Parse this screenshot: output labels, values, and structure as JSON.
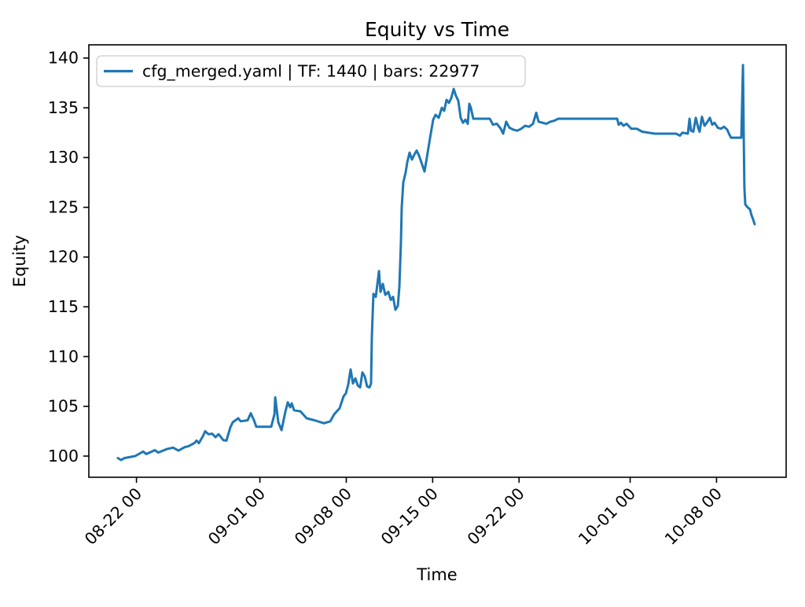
{
  "chart_data": {
    "type": "line",
    "title": "Equity vs Time",
    "xlabel": "Time",
    "ylabel": "Equity",
    "grid": false,
    "legend": {
      "position": "upper left",
      "entries": [
        "cfg_merged.yaml | TF: 1440 | bars: 22977"
      ]
    },
    "colors": {
      "line": "#1f77b4",
      "spine": "#000000",
      "legend_edge": "#cccccc",
      "background": "#ffffff"
    },
    "x_axis": {
      "unit": "days",
      "lim": [
        -2.36,
        54.14
      ],
      "tick_label_rotation_deg": 45,
      "ticks": [
        {
          "t": 1.5,
          "label": "08-22 00"
        },
        {
          "t": 11.5,
          "label": "09-01 00"
        },
        {
          "t": 18.5,
          "label": "09-08 00"
        },
        {
          "t": 25.5,
          "label": "09-15 00"
        },
        {
          "t": 32.5,
          "label": "09-22 00"
        },
        {
          "t": 41.5,
          "label": "10-01 00"
        },
        {
          "t": 48.5,
          "label": "10-08 00"
        }
      ]
    },
    "y_axis": {
      "lim": [
        97.87,
        141.33
      ],
      "ticks": [
        100,
        105,
        110,
        115,
        120,
        125,
        130,
        135,
        140
      ]
    },
    "series": [
      {
        "name": "cfg_merged.yaml | TF: 1440 | bars: 22977",
        "color": "#1f77b4",
        "points": [
          [
            0.0,
            99.8
          ],
          [
            0.25,
            99.6
          ],
          [
            0.51,
            99.8
          ],
          [
            1.4,
            100.0
          ],
          [
            2.04,
            100.45
          ],
          [
            2.29,
            100.2
          ],
          [
            2.99,
            100.6
          ],
          [
            3.25,
            100.35
          ],
          [
            3.95,
            100.7
          ],
          [
            4.46,
            100.85
          ],
          [
            4.9,
            100.55
          ],
          [
            5.41,
            100.9
          ],
          [
            5.73,
            101.0
          ],
          [
            6.18,
            101.3
          ],
          [
            6.37,
            101.55
          ],
          [
            6.56,
            101.3
          ],
          [
            6.88,
            102.0
          ],
          [
            7.07,
            102.5
          ],
          [
            7.32,
            102.2
          ],
          [
            7.64,
            102.25
          ],
          [
            7.9,
            101.9
          ],
          [
            8.15,
            102.2
          ],
          [
            8.54,
            101.6
          ],
          [
            8.79,
            101.55
          ],
          [
            9.11,
            102.9
          ],
          [
            9.3,
            103.4
          ],
          [
            9.75,
            103.8
          ],
          [
            9.94,
            103.5
          ],
          [
            10.51,
            103.6
          ],
          [
            10.76,
            104.3
          ],
          [
            11.02,
            103.6
          ],
          [
            11.21,
            102.95
          ],
          [
            12.42,
            102.95
          ],
          [
            12.68,
            104.2
          ],
          [
            12.74,
            105.9
          ],
          [
            12.99,
            103.4
          ],
          [
            13.25,
            102.6
          ],
          [
            13.57,
            104.5
          ],
          [
            13.76,
            105.4
          ],
          [
            13.95,
            104.9
          ],
          [
            14.08,
            105.3
          ],
          [
            14.27,
            104.6
          ],
          [
            14.78,
            104.5
          ],
          [
            15.29,
            103.8
          ],
          [
            15.92,
            103.6
          ],
          [
            16.69,
            103.3
          ],
          [
            17.2,
            103.5
          ],
          [
            17.52,
            104.2
          ],
          [
            17.96,
            104.8
          ],
          [
            18.28,
            106.0
          ],
          [
            18.47,
            106.3
          ],
          [
            18.66,
            107.2
          ],
          [
            18.85,
            108.7
          ],
          [
            19.04,
            107.3
          ],
          [
            19.24,
            107.8
          ],
          [
            19.43,
            107.1
          ],
          [
            19.62,
            106.9
          ],
          [
            19.81,
            108.4
          ],
          [
            20.0,
            108.0
          ],
          [
            20.19,
            107.0
          ],
          [
            20.38,
            106.9
          ],
          [
            20.51,
            107.3
          ],
          [
            20.57,
            112.0
          ],
          [
            20.7,
            116.3
          ],
          [
            20.89,
            116.0
          ],
          [
            21.15,
            118.6
          ],
          [
            21.27,
            116.5
          ],
          [
            21.46,
            117.3
          ],
          [
            21.66,
            116.2
          ],
          [
            21.91,
            116.5
          ],
          [
            22.1,
            115.7
          ],
          [
            22.29,
            116.0
          ],
          [
            22.48,
            114.7
          ],
          [
            22.68,
            115.1
          ],
          [
            22.8,
            117.0
          ],
          [
            22.93,
            121.5
          ],
          [
            22.99,
            125.0
          ],
          [
            23.12,
            127.5
          ],
          [
            23.31,
            128.5
          ],
          [
            23.44,
            129.5
          ],
          [
            23.63,
            130.5
          ],
          [
            23.82,
            129.8
          ],
          [
            24.01,
            130.3
          ],
          [
            24.2,
            130.7
          ],
          [
            24.39,
            130.2
          ],
          [
            24.59,
            129.5
          ],
          [
            24.84,
            128.6
          ],
          [
            25.03,
            130.0
          ],
          [
            25.29,
            132.0
          ],
          [
            25.54,
            133.8
          ],
          [
            25.73,
            134.3
          ],
          [
            25.99,
            134.0
          ],
          [
            26.24,
            135.0
          ],
          [
            26.43,
            134.7
          ],
          [
            26.62,
            135.8
          ],
          [
            26.82,
            135.5
          ],
          [
            27.01,
            136.0
          ],
          [
            27.2,
            136.9
          ],
          [
            27.39,
            136.2
          ],
          [
            27.58,
            135.7
          ],
          [
            27.77,
            134.0
          ],
          [
            27.96,
            133.5
          ],
          [
            28.15,
            133.8
          ],
          [
            28.34,
            133.4
          ],
          [
            28.47,
            135.4
          ],
          [
            28.6,
            135.0
          ],
          [
            28.79,
            133.9
          ],
          [
            29.3,
            133.9
          ],
          [
            30.13,
            133.9
          ],
          [
            30.38,
            133.3
          ],
          [
            30.7,
            133.4
          ],
          [
            31.02,
            132.9
          ],
          [
            31.21,
            132.4
          ],
          [
            31.46,
            133.6
          ],
          [
            31.72,
            133.0
          ],
          [
            32.04,
            132.8
          ],
          [
            32.36,
            132.7
          ],
          [
            32.68,
            132.9
          ],
          [
            32.99,
            133.2
          ],
          [
            33.31,
            133.1
          ],
          [
            33.63,
            133.4
          ],
          [
            33.89,
            134.5
          ],
          [
            34.08,
            133.6
          ],
          [
            34.39,
            133.5
          ],
          [
            34.71,
            133.4
          ],
          [
            35.03,
            133.6
          ],
          [
            35.35,
            133.7
          ],
          [
            35.67,
            133.9
          ],
          [
            40.45,
            133.9
          ],
          [
            40.57,
            133.3
          ],
          [
            40.76,
            133.5
          ],
          [
            40.96,
            133.2
          ],
          [
            41.21,
            133.4
          ],
          [
            41.59,
            132.9
          ],
          [
            42.04,
            132.9
          ],
          [
            42.48,
            132.6
          ],
          [
            43.5,
            132.4
          ],
          [
            45.22,
            132.4
          ],
          [
            45.54,
            132.2
          ],
          [
            45.73,
            132.5
          ],
          [
            46.18,
            132.4
          ],
          [
            46.31,
            133.9
          ],
          [
            46.43,
            132.7
          ],
          [
            46.62,
            132.6
          ],
          [
            46.82,
            134.0
          ],
          [
            47.01,
            133.0
          ],
          [
            47.13,
            132.6
          ],
          [
            47.32,
            134.1
          ],
          [
            47.52,
            133.2
          ],
          [
            47.71,
            133.5
          ],
          [
            47.96,
            134.0
          ],
          [
            48.15,
            133.3
          ],
          [
            48.34,
            133.5
          ],
          [
            48.6,
            133.0
          ],
          [
            48.85,
            132.9
          ],
          [
            49.11,
            133.1
          ],
          [
            49.36,
            132.8
          ],
          [
            49.55,
            132.3
          ],
          [
            49.68,
            132.0
          ],
          [
            50.51,
            132.0
          ],
          [
            50.64,
            139.3
          ],
          [
            50.7,
            132.5
          ],
          [
            50.76,
            127.0
          ],
          [
            50.83,
            125.3
          ],
          [
            51.02,
            125.0
          ],
          [
            51.21,
            124.8
          ],
          [
            51.34,
            124.2
          ],
          [
            51.46,
            123.8
          ],
          [
            51.59,
            123.3
          ]
        ]
      }
    ]
  }
}
